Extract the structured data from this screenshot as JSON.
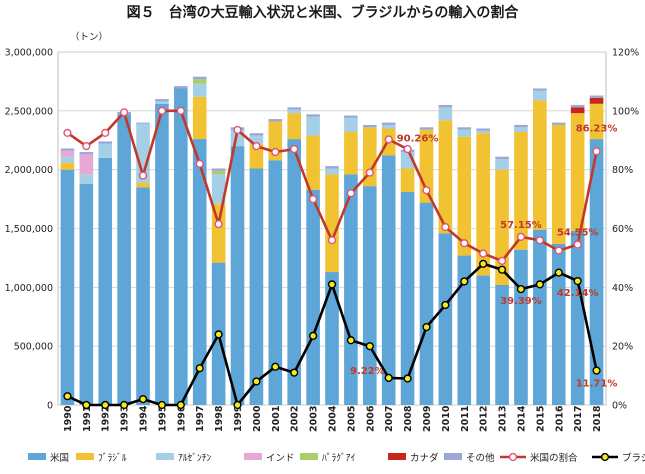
{
  "title": "図５　台湾の大豆輸入状況と米国、ブラジルからの輸入の割合",
  "chart_data": {
    "type": "bar",
    "stacked": true,
    "y_unit": "（トン）",
    "ylim": [
      0,
      3000000
    ],
    "y_ticks": [
      "0",
      "500,000",
      "1,000,000",
      "1,500,000",
      "2,000,000",
      "2,500,000",
      "3,000,000"
    ],
    "y2lim": [
      0,
      120
    ],
    "y2_ticks": [
      "0%",
      "20%",
      "40%",
      "60%",
      "80%",
      "100%",
      "120%"
    ],
    "grid": true,
    "legend_position": "bottom",
    "categories": [
      "1990",
      "1991",
      "1992",
      "1993",
      "1994",
      "1995",
      "1996",
      "1997",
      "1998",
      "1999",
      "2000",
      "2001",
      "2002",
      "2003",
      "2004",
      "2005",
      "2006",
      "2007",
      "2008",
      "2009",
      "2010",
      "2011",
      "2012",
      "2013",
      "2014",
      "2015",
      "2016",
      "2017",
      "2018"
    ],
    "series": [
      {
        "name": "米国",
        "color": "#5ea6d8",
        "values": [
          2000000,
          1880000,
          2100000,
          2470000,
          1850000,
          2560000,
          2690000,
          2260000,
          1210000,
          2200000,
          2010000,
          2080000,
          2260000,
          1830000,
          1130000,
          1960000,
          1860000,
          2120000,
          1810000,
          1720000,
          1460000,
          1270000,
          1100000,
          1020000,
          1320000,
          1490000,
          1370000,
          1480000,
          2260000
        ]
      },
      {
        "name": "ﾌﾞﾗｼﾞﾙ",
        "color": "#f1c232",
        "values": [
          60000,
          0,
          0,
          0,
          40000,
          0,
          0,
          360000,
          500000,
          0,
          210000,
          330000,
          220000,
          460000,
          830000,
          360000,
          500000,
          230000,
          200000,
          620000,
          960000,
          1010000,
          1210000,
          980000,
          1000000,
          1100000,
          1010000,
          1000000,
          300000
        ]
      },
      {
        "name": "ｱﾙｾﾞﾝﾁﾝ",
        "color": "#a5cfe6",
        "values": [
          50000,
          80000,
          120000,
          0,
          500000,
          20000,
          0,
          110000,
          250000,
          140000,
          70000,
          0,
          30000,
          160000,
          50000,
          120000,
          0,
          30000,
          140000,
          0,
          110000,
          60000,
          20000,
          90000,
          40000,
          80000,
          0,
          0,
          0
        ]
      },
      {
        "name": "インド",
        "color": "#e8a8d4",
        "values": [
          50000,
          170000,
          0,
          0,
          0,
          0,
          0,
          0,
          0,
          0,
          0,
          0,
          0,
          0,
          0,
          0,
          0,
          0,
          0,
          0,
          0,
          0,
          0,
          0,
          0,
          0,
          0,
          0,
          0
        ]
      },
      {
        "name": "ﾊﾟﾗｸﾞｱｲ",
        "color": "#a8cf6a",
        "values": [
          0,
          0,
          0,
          0,
          0,
          0,
          0,
          40000,
          30000,
          0,
          0,
          0,
          0,
          0,
          0,
          0,
          0,
          0,
          0,
          0,
          0,
          0,
          0,
          0,
          0,
          0,
          0,
          0,
          0
        ]
      },
      {
        "name": "カナダ",
        "color": "#c8261a",
        "values": [
          0,
          0,
          0,
          0,
          0,
          0,
          0,
          0,
          0,
          0,
          0,
          0,
          0,
          0,
          0,
          0,
          0,
          0,
          0,
          0,
          0,
          0,
          0,
          0,
          0,
          0,
          0,
          50000,
          50000
        ]
      },
      {
        "name": "その他",
        "color": "#9aa8d8",
        "values": [
          20000,
          20000,
          20000,
          20000,
          10000,
          20000,
          20000,
          20000,
          20000,
          20000,
          20000,
          20000,
          20000,
          20000,
          20000,
          20000,
          20000,
          20000,
          20000,
          20000,
          20000,
          20000,
          20000,
          20000,
          20000,
          20000,
          20000,
          20000,
          20000
        ]
      }
    ],
    "lines": [
      {
        "name": "米国の割合",
        "color": "#c0392b",
        "marker_fill": "#ffffff",
        "marker_stroke": "#e05575",
        "values": [
          92.5,
          88,
          92.5,
          99.5,
          78,
          100,
          100,
          82,
          61.5,
          93.5,
          88,
          86,
          87,
          70,
          56,
          72,
          79,
          90.26,
          87,
          73,
          60.5,
          55,
          51.5,
          49,
          57.15,
          56,
          52.5,
          54.55,
          86.23
        ],
        "labels": [
          {
            "index": 17,
            "text": "90.26%"
          },
          {
            "index": 24,
            "text": "57.15%"
          },
          {
            "index": 27,
            "text": "54.55%"
          },
          {
            "index": 28,
            "text": "86.23%"
          }
        ]
      },
      {
        "name": "ブラジルの割合",
        "color": "#000000",
        "marker_fill": "#f4e81e",
        "marker_stroke": "#000000",
        "values": [
          3,
          0,
          0,
          0,
          2,
          0,
          0,
          12.5,
          24,
          0,
          8,
          13,
          11,
          23.5,
          41,
          22,
          20,
          9.22,
          9,
          26.5,
          34,
          42,
          48,
          46,
          39.39,
          41,
          45,
          42.14,
          11.71
        ],
        "labels": [
          {
            "index": 17,
            "text": "9.22%"
          },
          {
            "index": 24,
            "text": "39.39%"
          },
          {
            "index": 27,
            "text": "42.14%"
          },
          {
            "index": 28,
            "text": "11.71%"
          }
        ]
      }
    ]
  }
}
